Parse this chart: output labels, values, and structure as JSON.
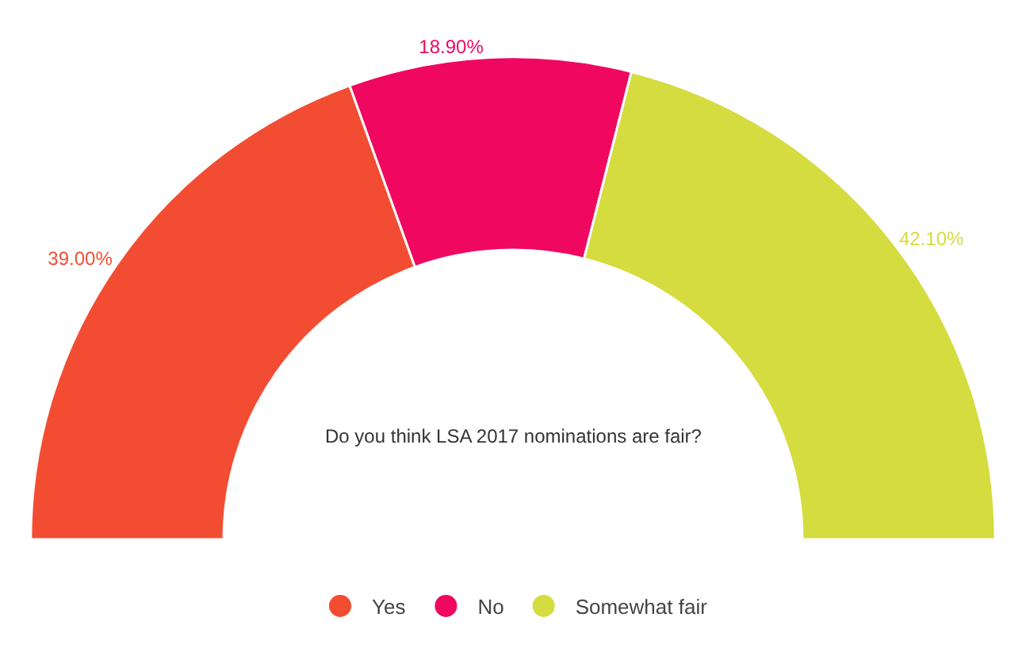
{
  "chart_data": {
    "type": "donut",
    "title": "Do you think LSA 2017 nominations are fair?",
    "categories": [
      "Yes",
      "No",
      "Somewhat fair"
    ],
    "values": [
      39,
      18.9,
      42.1
    ],
    "colors": [
      "#f24d32",
      "#f0075f",
      "#d5dc3f"
    ],
    "value_labels": [
      "39.00%",
      "18.90%",
      "42.10%"
    ],
    "legend": "bottom"
  }
}
